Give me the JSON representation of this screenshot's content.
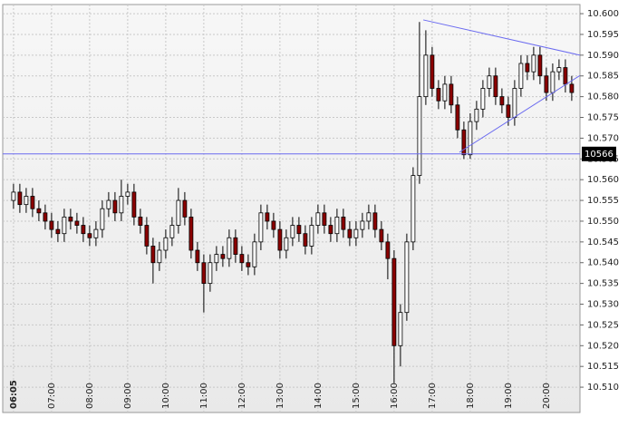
{
  "chart_data": {
    "type": "candlestick",
    "x": [
      0,
      1,
      2,
      3,
      4,
      5,
      6,
      7,
      8,
      9,
      10,
      11,
      12,
      13,
      14,
      15,
      16,
      17,
      18,
      19,
      20,
      21,
      22,
      23,
      24,
      25,
      26,
      27,
      28,
      29,
      30,
      31,
      32,
      33,
      34,
      35,
      36,
      37,
      38,
      39,
      40,
      41,
      42,
      43,
      44,
      45,
      46,
      47,
      48,
      49,
      50,
      51,
      52,
      53,
      54,
      55,
      56,
      57,
      58,
      59,
      60,
      61,
      62,
      63,
      64,
      65,
      66,
      67,
      68,
      69,
      70,
      71,
      72,
      73,
      74,
      75,
      76,
      77,
      78,
      79,
      80,
      81,
      82,
      83,
      84,
      85,
      86,
      87,
      88
    ],
    "open": [
      10.555,
      10.557,
      10.554,
      10.556,
      10.553,
      10.552,
      10.55,
      10.548,
      10.547,
      10.551,
      10.55,
      10.549,
      10.547,
      10.546,
      10.548,
      10.553,
      10.555,
      10.552,
      10.556,
      10.557,
      10.551,
      10.549,
      10.544,
      10.54,
      10.543,
      10.546,
      10.549,
      10.555,
      10.551,
      10.543,
      10.54,
      10.535,
      10.54,
      10.542,
      10.541,
      10.546,
      10.542,
      10.54,
      10.539,
      10.545,
      10.552,
      10.55,
      10.548,
      10.543,
      10.546,
      10.549,
      10.547,
      10.544,
      10.549,
      10.552,
      10.549,
      10.547,
      10.551,
      10.548,
      10.546,
      10.548,
      10.55,
      10.552,
      10.548,
      10.545,
      10.541,
      10.52,
      10.528,
      10.545,
      10.561,
      10.58,
      10.59,
      10.582,
      10.579,
      10.583,
      10.578,
      10.572,
      10.566,
      10.574,
      10.577,
      10.582,
      10.585,
      10.58,
      10.578,
      10.575,
      10.582,
      10.588,
      10.586,
      10.59,
      10.585,
      10.581,
      10.586,
      10.587,
      10.583
    ],
    "high": [
      10.559,
      10.559,
      10.558,
      10.558,
      10.555,
      10.554,
      10.552,
      10.55,
      10.553,
      10.553,
      10.552,
      10.551,
      10.549,
      10.55,
      10.555,
      10.557,
      10.557,
      10.56,
      10.559,
      10.559,
      10.553,
      10.551,
      10.546,
      10.545,
      10.548,
      10.551,
      10.558,
      10.557,
      10.553,
      10.545,
      10.542,
      10.542,
      10.544,
      10.544,
      10.548,
      10.548,
      10.544,
      10.542,
      10.547,
      10.554,
      10.554,
      10.552,
      10.55,
      10.548,
      10.551,
      10.551,
      10.549,
      10.551,
      10.554,
      10.554,
      10.551,
      10.553,
      10.553,
      10.55,
      10.55,
      10.552,
      10.554,
      10.554,
      10.55,
      10.547,
      10.543,
      10.53,
      10.547,
      10.563,
      10.598,
      10.596,
      10.592,
      10.584,
      10.585,
      10.585,
      10.58,
      10.574,
      10.576,
      10.579,
      10.584,
      10.587,
      10.587,
      10.582,
      10.58,
      10.584,
      10.59,
      10.59,
      10.592,
      10.592,
      10.587,
      10.588,
      10.589,
      10.589,
      10.585
    ],
    "low": [
      10.553,
      10.552,
      10.552,
      10.551,
      10.55,
      10.548,
      10.546,
      10.545,
      10.545,
      10.548,
      10.547,
      10.545,
      10.544,
      10.544,
      10.546,
      10.551,
      10.55,
      10.55,
      10.554,
      10.549,
      10.547,
      10.542,
      10.535,
      10.538,
      10.541,
      10.544,
      10.547,
      10.549,
      10.541,
      10.538,
      10.528,
      10.533,
      10.538,
      10.539,
      10.539,
      10.54,
      10.538,
      10.537,
      10.537,
      10.543,
      10.548,
      10.546,
      10.541,
      10.541,
      10.544,
      10.545,
      10.542,
      10.542,
      10.547,
      10.547,
      10.545,
      10.545,
      10.546,
      10.544,
      10.544,
      10.546,
      10.548,
      10.546,
      10.543,
      10.536,
      10.511,
      10.515,
      10.526,
      10.543,
      10.559,
      10.578,
      10.58,
      10.577,
      10.577,
      10.576,
      10.57,
      10.565,
      10.565,
      10.572,
      10.575,
      10.58,
      10.578,
      10.576,
      10.573,
      10.573,
      10.58,
      10.584,
      10.584,
      10.583,
      10.579,
      10.579,
      10.584,
      10.581,
      10.579
    ],
    "close": [
      10.557,
      10.554,
      10.556,
      10.553,
      10.552,
      10.55,
      10.548,
      10.547,
      10.551,
      10.55,
      10.549,
      10.547,
      10.546,
      10.548,
      10.553,
      10.555,
      10.552,
      10.556,
      10.557,
      10.551,
      10.549,
      10.544,
      10.54,
      10.543,
      10.546,
      10.549,
      10.555,
      10.551,
      10.543,
      10.54,
      10.535,
      10.54,
      10.542,
      10.541,
      10.546,
      10.542,
      10.54,
      10.539,
      10.545,
      10.552,
      10.55,
      10.548,
      10.543,
      10.546,
      10.549,
      10.547,
      10.544,
      10.549,
      10.552,
      10.549,
      10.547,
      10.551,
      10.548,
      10.546,
      10.548,
      10.55,
      10.552,
      10.548,
      10.545,
      10.541,
      10.52,
      10.528,
      10.545,
      10.561,
      10.58,
      10.59,
      10.582,
      10.579,
      10.583,
      10.578,
      10.572,
      10.566,
      10.574,
      10.577,
      10.582,
      10.585,
      10.58,
      10.578,
      10.575,
      10.582,
      10.588,
      10.586,
      10.59,
      10.585,
      10.581,
      10.586,
      10.587,
      10.583,
      10.581
    ],
    "up_color": "#ffffff",
    "down_color": "#8b0000",
    "line_color": "#6b6bf0",
    "xlim": [
      -1.7,
      89.3
    ],
    "ylim": [
      10.5039,
      10.6022
    ],
    "xticks": [
      {
        "value": 0,
        "label": "06:05"
      },
      {
        "value": 6,
        "label": "07:00"
      },
      {
        "value": 12,
        "label": "08:00"
      },
      {
        "value": 18,
        "label": "09:00"
      },
      {
        "value": 24,
        "label": "10:00"
      },
      {
        "value": 30,
        "label": "11:00"
      },
      {
        "value": 36,
        "label": "12:00"
      },
      {
        "value": 42,
        "label": "13:00"
      },
      {
        "value": 48,
        "label": "14:00"
      },
      {
        "value": 54,
        "label": "15:00"
      },
      {
        "value": 60,
        "label": "16:00"
      },
      {
        "value": 66,
        "label": "17:00"
      },
      {
        "value": 72,
        "label": "18:00"
      },
      {
        "value": 78,
        "label": "19:00"
      },
      {
        "value": 84,
        "label": "20:00"
      }
    ],
    "yticks": [
      {
        "value": 10.51,
        "label": "10.510"
      },
      10.515,
      {
        "value": 10.52,
        "label": "10.520"
      },
      10.525,
      {
        "value": 10.53,
        "label": "10.530"
      },
      10.535,
      {
        "value": 10.54,
        "label": "10.540"
      },
      10.545,
      {
        "value": 10.55,
        "label": "10.550"
      },
      10.555,
      {
        "value": 10.56,
        "label": "10.560"
      },
      10.565,
      {
        "value": 10.57,
        "label": "10.570"
      },
      10.575,
      {
        "value": 10.58,
        "label": "10.580"
      },
      10.585,
      {
        "value": 10.59,
        "label": "10.590"
      },
      10.595,
      {
        "value": 10.6,
        "label": "10.600"
      }
    ],
    "grid": true,
    "level": {
      "value": 10.5662,
      "label": "10566"
    },
    "trendlines": [
      {
        "x": [
          64.6,
          89.3
        ],
        "y": [
          10.5985,
          10.59
        ]
      },
      {
        "x": [
          70.3,
          89.3
        ],
        "y": [
          10.5666,
          10.5851
        ]
      }
    ]
  }
}
